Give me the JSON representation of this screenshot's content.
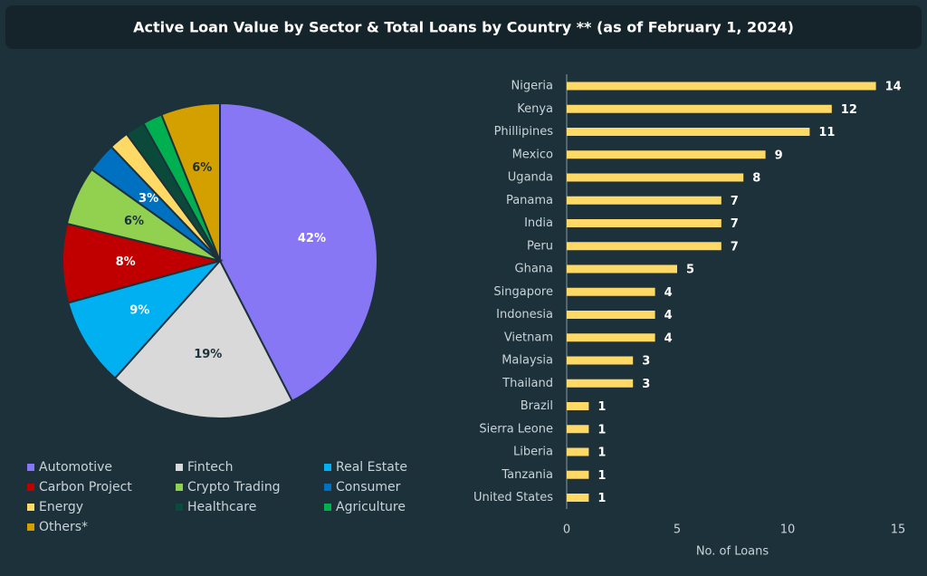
{
  "title": "Active Loan Value by Sector & Total Loans by Country ** (as of February 1, 2024)",
  "chart_data": [
    {
      "type": "pie",
      "categories": [
        "Automotive",
        "Fintech",
        "Real Estate",
        "Carbon Project",
        "Crypto Trading",
        "Consumer",
        "Energy",
        "Healthcare",
        "Agriculture",
        "Others*"
      ],
      "values": [
        42,
        19,
        9,
        8,
        6,
        3,
        2,
        2,
        2,
        6
      ],
      "value_labels": [
        "42%",
        "19%",
        "9%",
        "8%",
        "6%",
        "3%",
        null,
        null,
        null,
        "6%"
      ],
      "colors": [
        "#8877f5",
        "#d9d9d9",
        "#00b0f0",
        "#c00000",
        "#92d050",
        "#0070c0",
        "#ffd966",
        "#0b4a3a",
        "#00b050",
        "#d4a000"
      ]
    },
    {
      "type": "bar",
      "orientation": "horizontal",
      "categories": [
        "Nigeria",
        "Kenya",
        "Phillipines",
        "Mexico",
        "Uganda",
        "Panama",
        "India",
        "Peru",
        "Ghana",
        "Singapore",
        "Indonesia",
        "Vietnam",
        "Malaysia",
        "Thailand",
        "Brazil",
        "Sierra Leone",
        "Liberia",
        "Tanzania",
        "United States"
      ],
      "values": [
        14,
        12,
        11,
        9,
        8,
        7,
        7,
        7,
        5,
        4,
        4,
        4,
        3,
        3,
        1,
        1,
        1,
        1,
        1
      ],
      "color": "#ffd966",
      "xlabel": "No. of Loans",
      "xlim": [
        0,
        15
      ],
      "xticks": [
        0,
        5,
        10,
        15
      ]
    }
  ]
}
